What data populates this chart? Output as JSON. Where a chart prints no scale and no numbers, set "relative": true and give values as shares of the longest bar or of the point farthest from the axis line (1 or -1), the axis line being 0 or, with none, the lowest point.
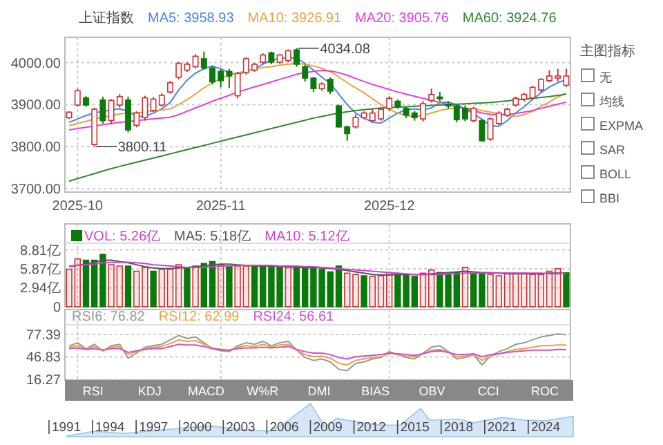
{
  "chart_data": [
    {
      "type": "candlestick",
      "title": "上证指数",
      "legend": "top",
      "grid": true,
      "categories": [
        null,
        "2025-10",
        null,
        null,
        null,
        null,
        null,
        null,
        null,
        null,
        null,
        null,
        null,
        null,
        null,
        null,
        null,
        null,
        "2025-11",
        null,
        null,
        null,
        null,
        null,
        null,
        null,
        null,
        null,
        null,
        null,
        null,
        null,
        null,
        null,
        null,
        null,
        null,
        null,
        "2025-12",
        null,
        null,
        null,
        null,
        null,
        null,
        null,
        null,
        null,
        null,
        null,
        null,
        null,
        null,
        null,
        null,
        null,
        null,
        null,
        null,
        null
      ],
      "ohlc": [
        [
          3869,
          3884,
          3866,
          3882
        ],
        [
          3899,
          3938,
          3895,
          3933
        ],
        [
          3916,
          3920,
          3895,
          3899
        ],
        [
          3805,
          3893,
          3800.11,
          3889
        ],
        [
          3911,
          3919,
          3855,
          3862
        ],
        [
          3862,
          3913,
          3853,
          3910
        ],
        [
          3899,
          3925,
          3893,
          3919
        ],
        [
          3911,
          3919,
          3834,
          3840
        ],
        [
          3851,
          3884,
          3846,
          3880
        ],
        [
          3869,
          3921,
          3862,
          3916
        ],
        [
          3886,
          3918,
          3882,
          3913
        ],
        [
          3899,
          3927,
          3895,
          3922
        ],
        [
          3930,
          3956,
          3926,
          3952
        ],
        [
          3965,
          4002,
          3960,
          3998
        ],
        [
          3982,
          4001,
          3978,
          3996
        ],
        [
          3990,
          4020,
          3986,
          4015
        ],
        [
          4009,
          4026,
          3983,
          3987
        ],
        [
          3987,
          3992,
          3948,
          3954
        ],
        [
          3979,
          3985,
          3941,
          3957
        ],
        [
          3979,
          3985,
          3940,
          3968
        ],
        [
          3921,
          3978,
          3915,
          3974
        ],
        [
          3976,
          4013,
          3971,
          4009
        ],
        [
          3982,
          3999,
          3978,
          3996
        ],
        [
          4001,
          4022,
          3997,
          4018
        ],
        [
          4023,
          4026,
          3996,
          4001
        ],
        [
          4001,
          4020,
          3997,
          4018
        ],
        [
          4005,
          4031,
          4001,
          4028
        ],
        [
          4030,
          4034.08,
          3990,
          3996
        ],
        [
          3990,
          3995,
          3955,
          3963
        ],
        [
          3963,
          3966,
          3930,
          3938
        ],
        [
          3938,
          3953,
          3933,
          3949
        ],
        [
          3960,
          3965,
          3925,
          3932
        ],
        [
          3897,
          3900,
          3845,
          3847
        ],
        [
          3847,
          3850,
          3814,
          3831
        ],
        [
          3847,
          3877,
          3843,
          3869
        ],
        [
          3869,
          3884,
          3865,
          3880
        ],
        [
          3862,
          3890,
          3858,
          3880
        ],
        [
          3866,
          3893,
          3862,
          3889
        ],
        [
          3891,
          3920,
          3886,
          3915
        ],
        [
          3908,
          3912,
          3890,
          3895
        ],
        [
          3891,
          3895,
          3868,
          3875
        ],
        [
          3880,
          3885,
          3862,
          3869
        ],
        [
          3866,
          3908,
          3860,
          3902
        ],
        [
          3910,
          3938,
          3905,
          3924
        ],
        [
          3918,
          3930,
          3908,
          3914
        ],
        [
          3901,
          3908,
          3890,
          3897
        ],
        [
          3897,
          3900,
          3858,
          3864
        ],
        [
          3891,
          3898,
          3860,
          3866
        ],
        [
          3862,
          3895,
          3858,
          3891
        ],
        [
          3862,
          3866,
          3812,
          3814
        ],
        [
          3818,
          3870,
          3814,
          3866
        ],
        [
          3855,
          3884,
          3851,
          3880
        ],
        [
          3875,
          3893,
          3870,
          3889
        ],
        [
          3899,
          3919,
          3895,
          3915
        ],
        [
          3913,
          3928,
          3908,
          3924
        ],
        [
          3916,
          3945,
          3912,
          3941
        ],
        [
          3935,
          3963,
          3930,
          3960
        ],
        [
          3957,
          3982,
          3953,
          3968
        ],
        [
          3963,
          3985,
          3955,
          3968
        ],
        [
          3946,
          3985,
          3942,
          3968
        ]
      ],
      "series": [
        {
          "name": "MA5: 3958.93",
          "type": "line",
          "color": "#4a86e8",
          "values": [
            3858,
            3866,
            3874,
            3880,
            3884,
            3888,
            3890,
            3884,
            3872,
            3872,
            3880,
            3890,
            3905,
            3935,
            3958,
            3975,
            3985,
            3992,
            3985,
            3976,
            3972,
            3978,
            3985,
            3996,
            4005,
            4010,
            4012,
            4010,
            3998,
            3982,
            3965,
            3950,
            3925,
            3900,
            3880,
            3868,
            3858,
            3856,
            3868,
            3880,
            3888,
            3890,
            3888,
            3892,
            3905,
            3906,
            3900,
            3890,
            3878,
            3865,
            3850,
            3848,
            3862,
            3880,
            3895,
            3912,
            3928,
            3942,
            3952,
            3958.93
          ]
        },
        {
          "name": "MA10: 3926.91",
          "type": "line",
          "color": "#e8a33d",
          "values": [
            3850,
            3855,
            3860,
            3866,
            3870,
            3874,
            3878,
            3880,
            3880,
            3882,
            3885,
            3887,
            3890,
            3900,
            3912,
            3925,
            3940,
            3952,
            3962,
            3970,
            3975,
            3980,
            3985,
            3988,
            3990,
            3994,
            3996,
            3998,
            3996,
            3992,
            3986,
            3978,
            3966,
            3952,
            3940,
            3928,
            3914,
            3900,
            3888,
            3880,
            3874,
            3872,
            3874,
            3880,
            3886,
            3890,
            3892,
            3892,
            3890,
            3886,
            3882,
            3878,
            3874,
            3872,
            3876,
            3884,
            3896,
            3906,
            3918,
            3926.91
          ]
        },
        {
          "name": "MA20: 3905.76",
          "type": "line",
          "color": "#e040e0",
          "values": [
            3840,
            3843,
            3846,
            3849,
            3852,
            3855,
            3858,
            3860,
            3862,
            3864,
            3866,
            3868,
            3870,
            3876,
            3884,
            3892,
            3900,
            3908,
            3915,
            3922,
            3930,
            3936,
            3942,
            3948,
            3954,
            3960,
            3966,
            3972,
            3976,
            3979,
            3981,
            3980,
            3976,
            3970,
            3962,
            3955,
            3948,
            3942,
            3936,
            3930,
            3925,
            3920,
            3915,
            3910,
            3905,
            3900,
            3895,
            3890,
            3885,
            3880,
            3877,
            3876,
            3877,
            3879,
            3882,
            3886,
            3891,
            3896,
            3901,
            3905.76
          ]
        },
        {
          "name": "MA60: 3924.76",
          "type": "line",
          "color": "#2e8b2e",
          "values": [
            3718,
            3724,
            3730,
            3736,
            3742,
            3748,
            3753,
            3758,
            3763,
            3768,
            3773,
            3778,
            3783,
            3788,
            3793,
            3798,
            3803,
            3808,
            3813,
            3818,
            3823,
            3828,
            3833,
            3838,
            3843,
            3848,
            3853,
            3858,
            3863,
            3868,
            3872,
            3876,
            3880,
            3883,
            3886,
            3888,
            3890,
            3892,
            3893,
            3894,
            3895,
            3896,
            3897,
            3898,
            3899,
            3900,
            3901,
            3902,
            3903,
            3904,
            3905,
            3907,
            3909,
            3911,
            3913,
            3915,
            3917,
            3919,
            3922,
            3924.76
          ]
        }
      ],
      "ylim": [
        3692,
        4060
      ],
      "yticks": [
        {
          "value": 4000,
          "label": "4000.00"
        },
        {
          "value": 3900,
          "label": "3900.00"
        },
        {
          "value": 3800,
          "label": "3800.00"
        },
        {
          "value": 3700,
          "label": "3700.00"
        }
      ],
      "annotations": [
        "4034.08",
        "3800.11"
      ]
    },
    {
      "type": "bar",
      "legend": "top",
      "grid": true,
      "tick_labels": "y",
      "categories": [
        null,
        "2025-10",
        null,
        null,
        null,
        null,
        null,
        null,
        null,
        null,
        null,
        null,
        null,
        null,
        null,
        null,
        null,
        null,
        "2025-11",
        null,
        null,
        null,
        null,
        null,
        null,
        null,
        null,
        null,
        null,
        null,
        null,
        null,
        null,
        null,
        null,
        null,
        null,
        null,
        "2025-12",
        null,
        null,
        null,
        null,
        null,
        null,
        null,
        null,
        null,
        null,
        null,
        null,
        null,
        null,
        null,
        null,
        null,
        null,
        null,
        null,
        null
      ],
      "series": [
        {
          "name": "VOL: 5.26亿",
          "type": "bar",
          "values": [
            5.8,
            7.4,
            7.2,
            7.2,
            8.1,
            6.5,
            6.3,
            6.3,
            5.5,
            6.1,
            5.5,
            5.8,
            5.8,
            6.5,
            6.0,
            6.3,
            6.7,
            7.0,
            6.5,
            6.3,
            6.3,
            6.3,
            6.3,
            6.3,
            6.1,
            6.1,
            6.1,
            6.1,
            6.1,
            6.0,
            5.8,
            5.4,
            6.3,
            5.2,
            5.0,
            4.8,
            4.7,
            4.8,
            5.3,
            5.0,
            5.0,
            4.7,
            5.2,
            5.7,
            5.3,
            5.0,
            5.3,
            6.1,
            5.2,
            5.2,
            5.0,
            4.8,
            5.2,
            5.2,
            5.2,
            5.0,
            5.0,
            5.5,
            5.9,
            5.26
          ],
          "colors": [
            "#d03030",
            "#d03030",
            "#0a7a0a",
            "#0a7a0a",
            "#0a7a0a",
            "#d03030",
            "#d03030",
            "#0a7a0a",
            "#d03030",
            "#d03030",
            "#0a7a0a",
            "#d03030",
            "#d03030",
            "#d03030",
            "#0a7a0a",
            "#d03030",
            "#0a7a0a",
            "#0a7a0a",
            "#d03030",
            "#0a7a0a",
            "#d03030",
            "#d03030",
            "#0a7a0a",
            "#0a7a0a",
            "#0a7a0a",
            "#0a7a0a",
            "#d03030",
            "#0a7a0a",
            "#0a7a0a",
            "#0a7a0a",
            "#0a7a0a",
            "#0a7a0a",
            "#0a7a0a",
            "#d03030",
            "#d03030",
            "#0a7a0a",
            "#d03030",
            "#d03030",
            "#d03030",
            "#0a7a0a",
            "#0a7a0a",
            "#0a7a0a",
            "#d03030",
            "#d03030",
            "#0a7a0a",
            "#0a7a0a",
            "#0a7a0a",
            "#d03030",
            "#0a7a0a",
            "#0a7a0a",
            "#d03030",
            "#d03030",
            "#d03030",
            "#d03030",
            "#d03030",
            "#d03030",
            "#d03030",
            "#d03030",
            "#d03030",
            "#0a7a0a"
          ]
        },
        {
          "name": "MA5: 5.18亿",
          "type": "line",
          "color": "#555555",
          "values": [
            6.2,
            6.4,
            6.6,
            6.9,
            7.2,
            7.2,
            7.0,
            6.8,
            6.5,
            6.2,
            6.0,
            5.9,
            5.9,
            6.0,
            6.1,
            6.2,
            6.3,
            6.5,
            6.6,
            6.6,
            6.5,
            6.4,
            6.3,
            6.3,
            6.3,
            6.2,
            6.2,
            6.1,
            6.1,
            6.1,
            6.0,
            5.9,
            5.8,
            5.6,
            5.4,
            5.2,
            5.0,
            4.9,
            4.9,
            5.0,
            5.0,
            5.0,
            5.0,
            5.1,
            5.2,
            5.3,
            5.4,
            5.5,
            5.4,
            5.3,
            5.3,
            5.2,
            5.1,
            5.1,
            5.1,
            5.1,
            5.1,
            5.2,
            5.2,
            5.18
          ]
        },
        {
          "name": "MA10: 5.12亿",
          "type": "line",
          "color": "#d040d0",
          "values": [
            6.3,
            6.4,
            6.5,
            6.6,
            6.8,
            6.9,
            6.9,
            6.9,
            6.8,
            6.7,
            6.5,
            6.4,
            6.3,
            6.2,
            6.1,
            6.1,
            6.1,
            6.2,
            6.3,
            6.3,
            6.4,
            6.4,
            6.4,
            6.4,
            6.4,
            6.3,
            6.3,
            6.3,
            6.2,
            6.2,
            6.1,
            6.0,
            5.9,
            5.8,
            5.7,
            5.6,
            5.5,
            5.4,
            5.3,
            5.2,
            5.1,
            5.0,
            5.0,
            5.0,
            5.0,
            5.1,
            5.1,
            5.2,
            5.2,
            5.2,
            5.2,
            5.2,
            5.2,
            5.2,
            5.2,
            5.2,
            5.2,
            5.1,
            5.1,
            5.12
          ]
        }
      ],
      "ylim": [
        0,
        9.4
      ],
      "yticks": [
        {
          "value": 8.81,
          "label": "8.81亿"
        },
        {
          "value": 5.87,
          "label": "5.87亿"
        },
        {
          "value": 2.94,
          "label": "2.94亿"
        },
        0
      ]
    },
    {
      "type": "line",
      "legend": "top",
      "grid": true,
      "tick_labels": "y",
      "categories": [
        null,
        "2025-10",
        null,
        null,
        null,
        null,
        null,
        null,
        null,
        null,
        null,
        null,
        null,
        null,
        null,
        null,
        null,
        null,
        "2025-11",
        null,
        null,
        null,
        null,
        null,
        null,
        null,
        null,
        null,
        null,
        null,
        null,
        null,
        null,
        null,
        null,
        null,
        null,
        null,
        "2025-12",
        null,
        null,
        null,
        null,
        null,
        null,
        null,
        null,
        null,
        null,
        null,
        null,
        null,
        null,
        null,
        null,
        null,
        null,
        null,
        null,
        null
      ],
      "series": [
        {
          "name": "RSI6: 76.82",
          "color": "#999999",
          "values": [
            62,
            66,
            58,
            64,
            55,
            62,
            64,
            45,
            52,
            60,
            62,
            64,
            70,
            76,
            72,
            74,
            66,
            58,
            55,
            54,
            62,
            66,
            64,
            68,
            62,
            66,
            68,
            56,
            46,
            42,
            44,
            40,
            30,
            28,
            38,
            40,
            44,
            46,
            54,
            50,
            46,
            44,
            52,
            60,
            62,
            54,
            44,
            46,
            50,
            36,
            48,
            54,
            58,
            64,
            66,
            70,
            74,
            76,
            78,
            76.82
          ]
        },
        {
          "name": "RSI12: 62.99",
          "color": "#e8a33d",
          "values": [
            60,
            62,
            58,
            61,
            56,
            60,
            61,
            50,
            54,
            58,
            60,
            61,
            65,
            70,
            68,
            69,
            64,
            59,
            57,
            56,
            60,
            62,
            61,
            64,
            60,
            63,
            64,
            56,
            50,
            47,
            48,
            45,
            38,
            36,
            42,
            44,
            46,
            47,
            52,
            50,
            48,
            47,
            51,
            56,
            57,
            53,
            47,
            48,
            50,
            42,
            48,
            51,
            54,
            57,
            58,
            60,
            62,
            62,
            63,
            62.99
          ]
        },
        {
          "name": "RSI24: 56.61",
          "color": "#d050d0",
          "values": [
            58,
            59,
            57,
            58,
            56,
            58,
            58,
            53,
            55,
            57,
            58,
            58,
            61,
            64,
            63,
            63,
            61,
            58,
            57,
            56,
            58,
            59,
            59,
            60,
            59,
            60,
            61,
            57,
            54,
            52,
            52,
            50,
            46,
            44,
            47,
            48,
            49,
            50,
            52,
            51,
            50,
            49,
            51,
            54,
            55,
            53,
            50,
            50,
            51,
            47,
            50,
            51,
            53,
            54,
            55,
            56,
            56,
            56,
            57,
            56.61
          ]
        }
      ],
      "ylim": [
        15.3,
        86.8
      ],
      "yticks": [
        77.39,
        46.83,
        16.27
      ]
    },
    {
      "type": "area",
      "relative": true,
      "color": "#d6e6f7",
      "x": [
        1991,
        1993,
        1995,
        1997,
        2000,
        2001,
        2003,
        2005,
        2006,
        2007.8,
        2008.8,
        2009.6,
        2011,
        2012.5,
        2014,
        2015.4,
        2016,
        2018,
        2019,
        2021,
        2022.5,
        2024,
        2025.9
      ],
      "values": [
        0.02,
        0.17,
        0.1,
        0.18,
        0.3,
        0.32,
        0.22,
        0.17,
        0.4,
        1,
        0.3,
        0.55,
        0.45,
        0.35,
        0.35,
        0.85,
        0.5,
        0.53,
        0.42,
        0.58,
        0.5,
        0.48,
        0.62
      ],
      "xlim": [
        1990.9,
        2025.9
      ],
      "xticks": [
        1991,
        1994,
        1997,
        2000,
        2003,
        2006,
        2009,
        2012,
        2015,
        2018,
        2021,
        2024
      ]
    },
    {
      "type": "other",
      "title": "主图指标",
      "annotations": [
        "无",
        "均线",
        "EXPMA",
        "SAR",
        "BOLL",
        "BBI"
      ]
    },
    {
      "type": "other",
      "annotations": [
        "RSI",
        "KDJ",
        "MACD",
        "W%R",
        "DMI",
        "BIAS",
        "OBV",
        "CCI",
        "ROC"
      ]
    }
  ]
}
